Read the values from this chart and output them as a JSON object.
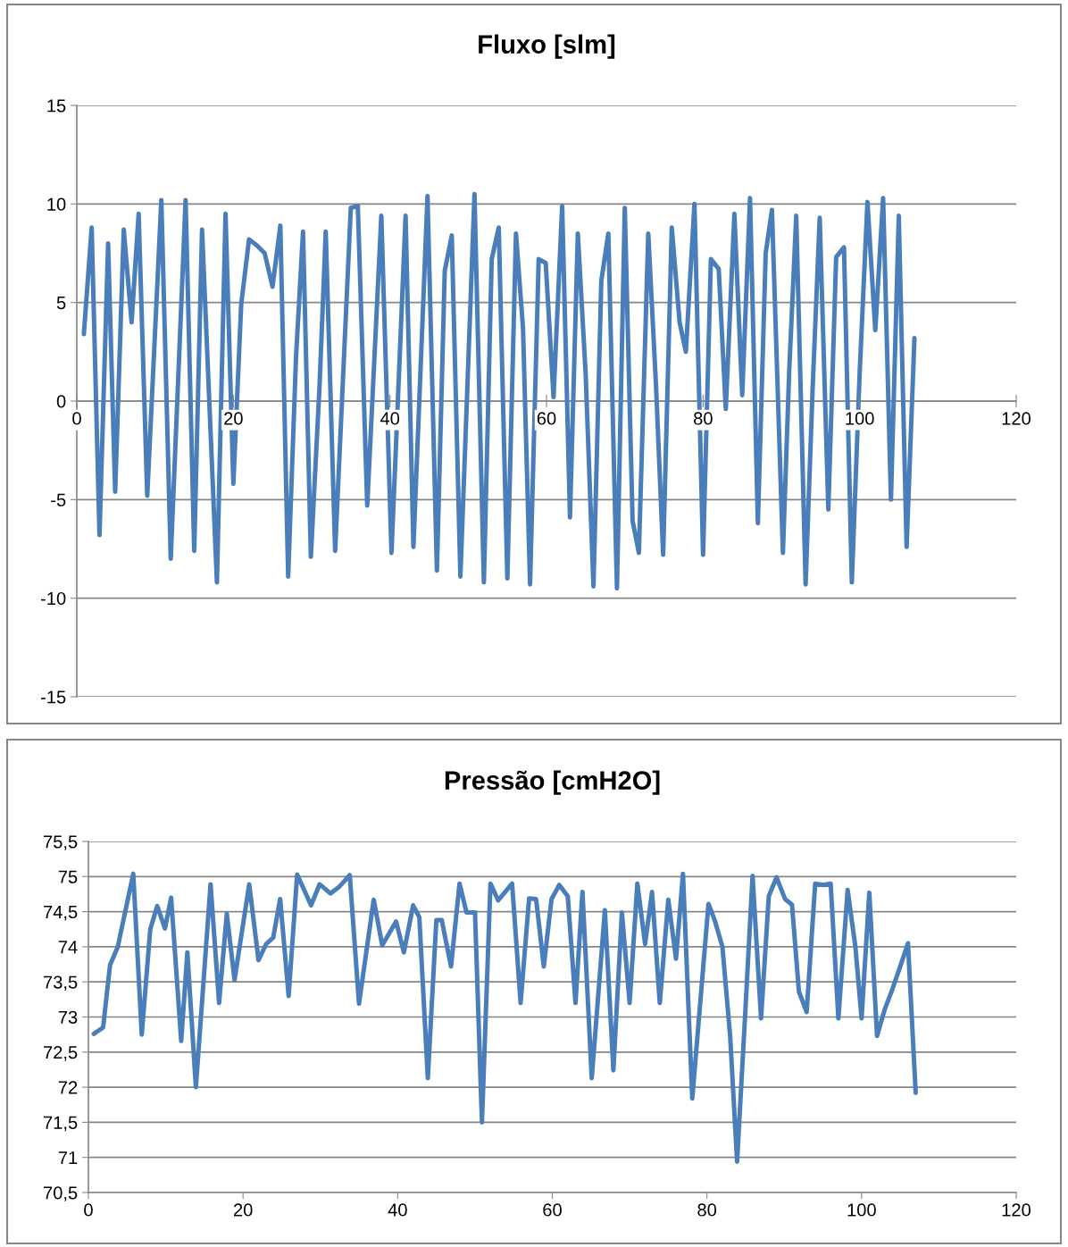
{
  "chart_data": [
    {
      "type": "line",
      "title": "Fluxo [slm]",
      "xlim": [
        0,
        120
      ],
      "xticks": [
        0,
        20,
        40,
        60,
        80,
        100,
        120
      ],
      "ylim": [
        -15,
        15
      ],
      "yticks": [
        -15,
        -10,
        -5,
        0,
        5,
        10,
        15
      ],
      "grid": "y",
      "marker": "none",
      "line_style": "solid",
      "series": [
        {
          "color": "#4a7ebb",
          "x": [
            0.9,
            1.9,
            2.9,
            4.0,
            4.9,
            6.0,
            7.0,
            7.9,
            9.0,
            10.8,
            12.0,
            13.9,
            15.0,
            16.0,
            17.9,
            19.0,
            20.0,
            21.0,
            22.0,
            23.0,
            24.0,
            25.0,
            26.0,
            27.0,
            28.0,
            28.9,
            29.9,
            31.0,
            31.8,
            33.0,
            35.0,
            35.9,
            37.1,
            38.9,
            40.2,
            42.0,
            43.0,
            44.8,
            46.0,
            47.0,
            47.9,
            49.0,
            50.8,
            52.0,
            53.0,
            53.9,
            55.0,
            56.1,
            57.0,
            57.9,
            59.0,
            59.9,
            60.9,
            62.0,
            63.0,
            64.0,
            65.0,
            66.0,
            67.0,
            67.9,
            69.0,
            70.0,
            71.0,
            71.8,
            73.0,
            74.0,
            74.9,
            76.0,
            77.0,
            77.8,
            78.9,
            80.0,
            81.0,
            82.0,
            82.9,
            84.0,
            85.0,
            86.0,
            87.0,
            88.0,
            88.8,
            90.2,
            91.0,
            91.9,
            93.1,
            94.0,
            94.9,
            96.0,
            97.0,
            98.0,
            99.0,
            100.0,
            101.0,
            102.0,
            103.0,
            104.0,
            105.0,
            106.0,
            107.0
          ],
          "values": [
            3.4,
            8.8,
            -6.8,
            8.0,
            -4.6,
            8.7,
            4.0,
            9.5,
            -4.8,
            10.2,
            -8.0,
            10.2,
            -7.6,
            8.7,
            -9.2,
            9.5,
            -4.2,
            4.9,
            8.2,
            7.9,
            7.5,
            5.8,
            8.9,
            -8.9,
            2.2,
            8.6,
            -7.9,
            0.7,
            8.6,
            -7.6,
            9.8,
            9.9,
            -5.3,
            9.4,
            -7.7,
            9.4,
            -7.4,
            10.4,
            -8.6,
            6.6,
            8.4,
            -8.9,
            10.5,
            -9.2,
            7.2,
            8.8,
            -9.0,
            8.5,
            3.7,
            -9.3,
            7.2,
            7.0,
            0.2,
            9.9,
            -5.9,
            8.5,
            1.4,
            -9.4,
            6.1,
            8.5,
            -9.5,
            9.8,
            -6.1,
            -7.7,
            8.5,
            0.7,
            -7.8,
            8.8,
            4.0,
            2.5,
            10.0,
            -7.8,
            7.2,
            6.7,
            -0.4,
            9.5,
            0.3,
            10.3,
            -6.2,
            7.5,
            9.7,
            -7.7,
            1.5,
            9.4,
            -9.3,
            0.7,
            9.3,
            -5.5,
            7.3,
            7.8,
            -9.2,
            1.4,
            10.1,
            3.6,
            10.3,
            -5.0,
            9.4,
            -7.4,
            3.2
          ]
        }
      ]
    },
    {
      "type": "line",
      "title": "Pressão [cmH2O]",
      "xlim": [
        0,
        120
      ],
      "xticks": [
        0,
        20,
        40,
        60,
        80,
        100,
        120
      ],
      "ylim": [
        70.5,
        75.5
      ],
      "yticks": [
        {
          "value": 70.5,
          "label": "70,5"
        },
        71,
        {
          "value": 71.5,
          "label": "71,5"
        },
        72,
        {
          "value": 72.5,
          "label": "72,5"
        },
        73,
        {
          "value": 73.5,
          "label": "73,5"
        },
        74,
        {
          "value": 74.5,
          "label": "74,5"
        },
        75,
        {
          "value": 75.5,
          "label": "75,5"
        }
      ],
      "grid": "y",
      "marker": "none",
      "line_style": "solid",
      "series": [
        {
          "color": "#4a7ebb",
          "x": [
            0.7,
            1.9,
            2.8,
            3.8,
            5.8,
            6.9,
            8.0,
            8.9,
            9.9,
            10.7,
            12.0,
            12.8,
            13.9,
            15.8,
            16.9,
            17.9,
            18.9,
            20.8,
            22.0,
            23.0,
            23.9,
            24.8,
            25.9,
            27.0,
            28.8,
            29.9,
            31.3,
            32.4,
            33.8,
            35.0,
            36.9,
            38.0,
            39.8,
            40.8,
            42.0,
            42.8,
            43.9,
            45.0,
            45.7,
            46.9,
            48.0,
            48.9,
            50.0,
            50.9,
            52.0,
            53.0,
            54.8,
            55.9,
            57.0,
            57.9,
            58.9,
            59.9,
            60.9,
            62.0,
            63.0,
            63.9,
            65.1,
            66.8,
            67.9,
            69.0,
            70.0,
            71.0,
            72.0,
            72.9,
            73.9,
            75.0,
            76.0,
            76.9,
            78.1,
            80.2,
            81.0,
            82.0,
            83.0,
            83.9,
            85.0,
            85.9,
            87.0,
            88.0,
            89.0,
            90.1,
            91.0,
            91.9,
            92.9,
            94.0,
            95.0,
            96.0,
            97.0,
            98.2,
            99.2,
            100.0,
            101.0,
            102.0,
            103.0,
            104.0,
            105.0,
            106.0,
            107.0
          ],
          "values": [
            72.76,
            72.85,
            73.74,
            74.0,
            75.04,
            72.75,
            74.25,
            74.58,
            74.26,
            74.7,
            72.66,
            73.92,
            72.0,
            74.89,
            73.2,
            74.47,
            73.53,
            74.89,
            73.81,
            74.04,
            74.13,
            74.68,
            73.3,
            75.03,
            74.59,
            74.89,
            74.76,
            74.85,
            75.02,
            73.19,
            74.67,
            74.02,
            74.36,
            73.92,
            74.59,
            74.42,
            72.13,
            74.38,
            74.38,
            73.72,
            74.9,
            74.49,
            74.49,
            71.5,
            74.9,
            74.66,
            74.9,
            73.2,
            74.69,
            74.68,
            73.72,
            74.68,
            74.88,
            74.72,
            73.2,
            74.78,
            72.13,
            74.52,
            72.24,
            74.49,
            73.2,
            74.9,
            74.04,
            74.78,
            73.2,
            74.67,
            73.83,
            75.04,
            71.84,
            74.61,
            74.38,
            74.0,
            72.73,
            70.94,
            73.15,
            75.01,
            72.98,
            74.72,
            74.99,
            74.68,
            74.6,
            73.36,
            73.07,
            74.9,
            74.88,
            74.9,
            72.98,
            74.81,
            74.0,
            72.98,
            74.77,
            72.73,
            73.11,
            73.4,
            73.72,
            74.05,
            71.92
          ]
        }
      ]
    }
  ]
}
